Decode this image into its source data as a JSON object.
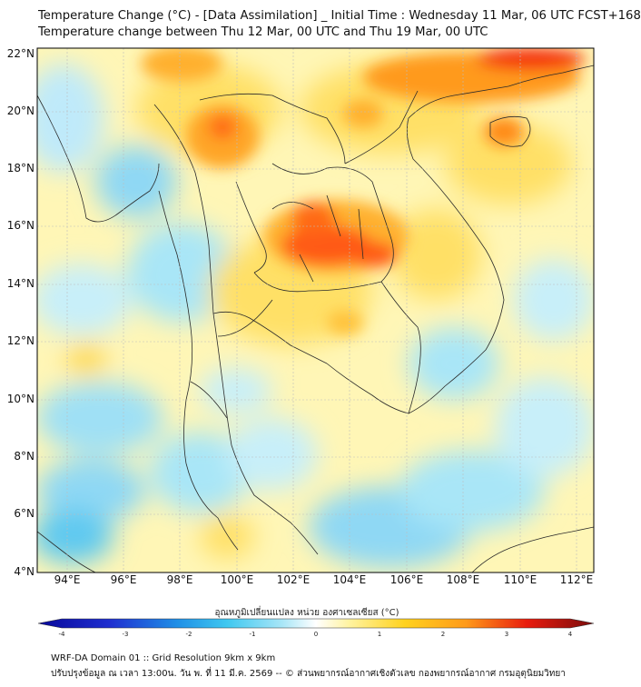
{
  "header": {
    "line1": "Temperature Change (°C) - [Data Assimilation] _ Initial Time : Wednesday 11 Mar, 06 UTC FCST+168",
    "line2": "Temperature change between Thu 12 Mar, 00 UTC and Thu 19 Mar, 00 UTC"
  },
  "map": {
    "lat_labels": [
      "22°N",
      "20°N",
      "18°N",
      "16°N",
      "14°N",
      "12°N",
      "10°N",
      "8°N",
      "6°N",
      "4°N"
    ],
    "lon_labels": [
      "94°E",
      "96°E",
      "98°E",
      "100°E",
      "102°E",
      "104°E",
      "106°E",
      "108°E",
      "110°E",
      "112°E"
    ]
  },
  "colorbar": {
    "title": "อุณหภูมิเปลี่ยนแปลง หน่วย องศาเซลเซียส (°C)",
    "ticks": [
      "-4",
      "-3",
      "-2",
      "-1",
      "0",
      "1",
      "2",
      "3",
      "4"
    ],
    "colors": {
      "deep_blue": "#08089a",
      "blue": "#1f5fd6",
      "cyan": "#3fc8f0",
      "light_cyan": "#a9e6f7",
      "white": "#ffffff",
      "light_yellow": "#fff3a0",
      "yellow": "#ffd21e",
      "orange": "#ff9a1a",
      "red": "#e81c0e",
      "dark_red": "#7a0c0c"
    }
  },
  "footer": {
    "line1": "WRF-DA Domain 01 :: Grid Resolution 9km x 9km",
    "line2": "ปรับปรุงข้อมูล ณ เวลา 13:00น. วัน พ. ที่ 11 มี.ค. 2569 -- © ส่วนพยากรณ์อากาศเชิงตัวเลข กองพยากรณ์อากาศ กรมอุตุนิยมวิทยา"
  }
}
